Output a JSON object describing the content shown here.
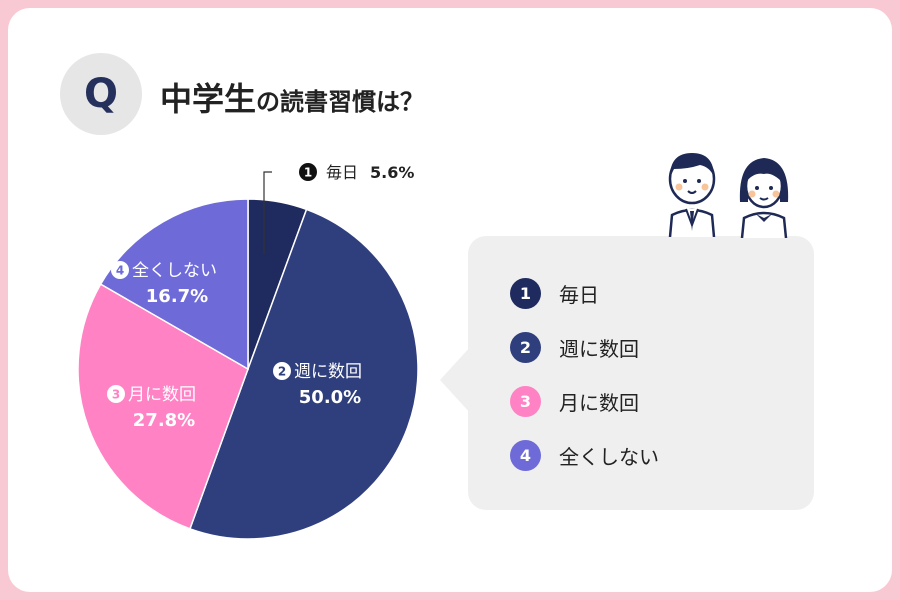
{
  "header": {
    "q_badge": "Q",
    "title_main": "中学生",
    "title_sub": "の読書習慣は？"
  },
  "colors": {
    "page_border": "#f9c9d3",
    "series": [
      "#1f2a5e",
      "#2f3f7e",
      "#ff82c5",
      "#6e6bd9"
    ]
  },
  "chart_data": {
    "type": "pie",
    "title": "中学生の読書習慣は？",
    "categories": [
      "毎日",
      "週に数回",
      "月に数回",
      "全くしない"
    ],
    "values": [
      5.6,
      50.0,
      27.8,
      16.7
    ],
    "unit": "%",
    "data_labels": [
      {
        "num": "1",
        "name": "毎日",
        "value": "5.6%"
      },
      {
        "num": "2",
        "name": "週に数回",
        "value": "50.0%"
      },
      {
        "num": "3",
        "name": "月に数回",
        "value": "27.8%"
      },
      {
        "num": "4",
        "name": "全くしない",
        "value": "16.7%"
      }
    ],
    "legend_position": "right"
  },
  "legend": {
    "items": [
      {
        "num": "1",
        "label": "毎日"
      },
      {
        "num": "2",
        "label": "週に数回"
      },
      {
        "num": "3",
        "label": "月に数回"
      },
      {
        "num": "4",
        "label": "全くしない"
      }
    ]
  },
  "icons": [
    "student-boy-icon",
    "student-girl-icon"
  ]
}
